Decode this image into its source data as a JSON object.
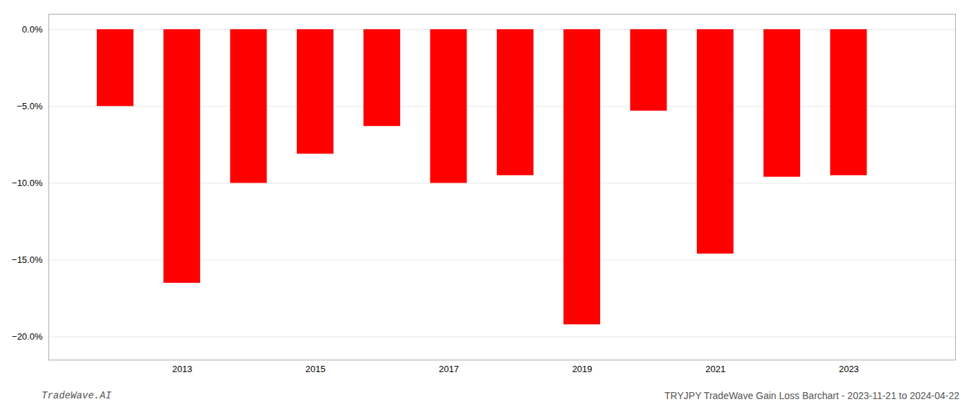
{
  "chart_data": {
    "type": "bar",
    "x": [
      2012,
      2013,
      2014,
      2015,
      2016,
      2017,
      2018,
      2019,
      2020,
      2021,
      2022,
      2023
    ],
    "values": [
      -5.0,
      -16.5,
      -10.0,
      -8.1,
      -6.3,
      -10.0,
      -9.5,
      -19.2,
      -5.3,
      -14.6,
      -9.6,
      -9.5
    ],
    "color": "#ff0000",
    "xlim": [
      2011.0,
      2024.6
    ],
    "xticks": [
      2013,
      2015,
      2017,
      2019,
      2021,
      2023
    ],
    "ylim": [
      -21.5,
      1.0
    ],
    "yticks": [
      {
        "value": 0,
        "label": "0.0%"
      },
      {
        "value": -5,
        "label": "−5.0%"
      },
      {
        "value": -10,
        "label": "−10.0%"
      },
      {
        "value": -15,
        "label": "−15.0%"
      },
      {
        "value": -20,
        "label": "−20.0%"
      }
    ],
    "grid": true,
    "annotations": [
      "TradeWave.AI",
      "TRYJPY TradeWave Gain Loss Barchart - 2023-11-21 to 2024-04-22"
    ]
  }
}
